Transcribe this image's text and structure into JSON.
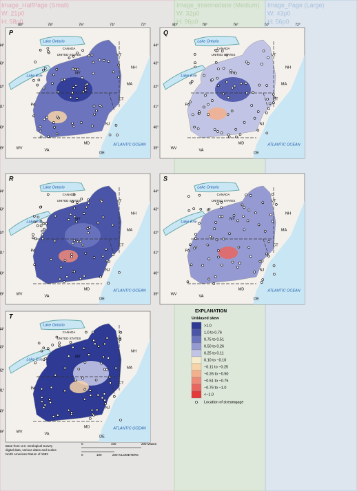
{
  "guides": [
    {
      "title": "Image_HalfPage (Small)",
      "width": "W: 21p0",
      "height": "H: 58p0"
    },
    {
      "title": "Image_Intermediate (Medium)",
      "width": "W: 32p0",
      "height": "H: 96p0"
    },
    {
      "title": "Image_Page (Large)",
      "width": "W: 43p0",
      "height": "H: 56p0"
    }
  ],
  "panels": [
    "P",
    "Q",
    "R",
    "S",
    "T"
  ],
  "longitudes": [
    "80°",
    "78°",
    "76°",
    "74°",
    "72°"
  ],
  "latitudes": [
    "44°",
    "43°",
    "42°",
    "41°",
    "40°",
    "39°"
  ],
  "map_labels": [
    "Lake Ontario",
    "CANADA",
    "UNITED STATES",
    "Lake Erie",
    "VT",
    "NH",
    "NY",
    "MA",
    "CT",
    "PA",
    "NJ",
    "MD",
    "DE",
    "WV",
    "VA",
    "ATLANTIC OCEAN"
  ],
  "legend": {
    "title": "EXPLANATION",
    "subtitle": "Unbiased skew",
    "items": [
      {
        "label": ">1.0",
        "color": "#2e3a93"
      },
      {
        "label": "1.0 to 0.76",
        "color": "#4a55a8"
      },
      {
        "label": "0.75 to 0.51",
        "color": "#6c74bd"
      },
      {
        "label": "0.50 to 0.26",
        "color": "#959bd2"
      },
      {
        "label": "0.25 to 0.11",
        "color": "#c1c4e5"
      },
      {
        "label": "0.10 to −0.10",
        "color": "#f6ebcc"
      },
      {
        "label": "−0.11 to −0.25",
        "color": "#f7d3a8"
      },
      {
        "label": "−0.26 to −0.50",
        "color": "#f3b08d"
      },
      {
        "label": "−0.51 to −0.75",
        "color": "#ee8a78"
      },
      {
        "label": "−0.76 to −1.0",
        "color": "#e96660"
      },
      {
        "label": "<−1.0",
        "color": "#e33b3b"
      }
    ],
    "gage": "Location of streamgage"
  },
  "credits": [
    "Base from U.S. Geological Survey",
    "digital data, various dates and scales",
    "North American Datum of 1983"
  ],
  "scale": {
    "miles": [
      "0",
      "100",
      "200 MILES"
    ],
    "kilometers": [
      "0",
      "100",
      "200 KILOMETERS"
    ]
  }
}
